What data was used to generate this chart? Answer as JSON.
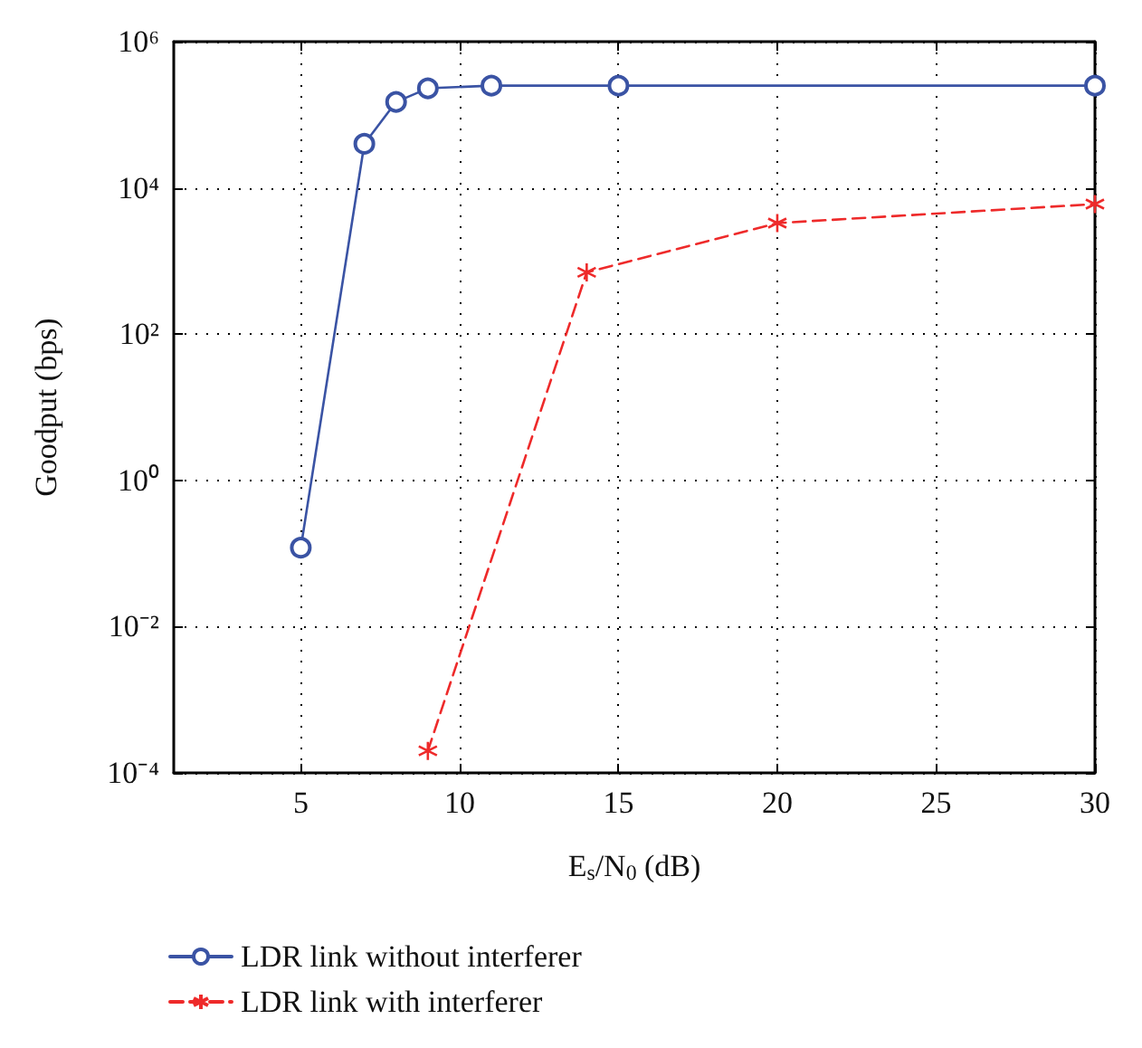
{
  "chart_data": {
    "type": "line",
    "xlabel": "E$_{s}$/N$_{0}$ (dB)",
    "ylabel": "Goodput (bps)",
    "log": "y",
    "grid": true,
    "legend": "bottom left",
    "xlim": [
      1,
      30
    ],
    "xticks": [
      5,
      10,
      15,
      20,
      25,
      30
    ],
    "ylim": [
      0.0001,
      1000000
    ],
    "yticks": [
      {
        "value": 0.0001,
        "label": "10⁻⁴"
      },
      {
        "value": 0.01,
        "label": "10⁻²"
      },
      {
        "value": 1,
        "label": "10⁰"
      },
      {
        "value": 100,
        "label": "10²"
      },
      {
        "value": 10000,
        "label": "10⁴"
      },
      {
        "value": 1000000,
        "label": "10⁶"
      }
    ],
    "series": [
      {
        "name": "LDR link without interferer",
        "color": "#3a53a4",
        "marker": "circle",
        "line_style": "solid",
        "x": [
          5,
          7,
          8,
          9,
          11,
          15,
          30
        ],
        "values": [
          0.12,
          40000,
          150000,
          230000,
          250000,
          250000,
          250000
        ]
      },
      {
        "name": "LDR link with interferer",
        "color": "#ee2a2a",
        "marker": "cross",
        "line_style": "dashed",
        "x": [
          9,
          14,
          20,
          30
        ],
        "values": [
          0.0002,
          700,
          3300,
          6000
        ]
      }
    ]
  }
}
